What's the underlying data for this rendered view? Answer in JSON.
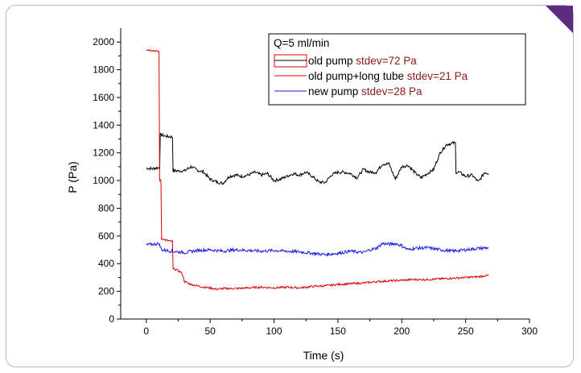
{
  "chart_data": {
    "type": "line",
    "xlabel": "Time (s)",
    "ylabel": "P (Pa)",
    "xlim": [
      -20,
      300
    ],
    "ylim": [
      0,
      2100
    ],
    "x_ticks": [
      0,
      50,
      100,
      150,
      200,
      250,
      300
    ],
    "y_ticks": [
      0,
      200,
      400,
      600,
      800,
      1000,
      1200,
      1400,
      1600,
      1800,
      2000
    ],
    "legend_title": "Q=5 ml/min",
    "legend_position": "top-right",
    "series": [
      {
        "name": "old pump",
        "stat": "stdev=72 Pa",
        "color": "#000000",
        "points": [
          [
            0,
            1090
          ],
          [
            5,
            1085
          ],
          [
            10,
            1095
          ],
          [
            12,
            1330
          ],
          [
            15,
            1320
          ],
          [
            20,
            1315
          ],
          [
            22,
            1070
          ],
          [
            30,
            1070
          ],
          [
            35,
            1100
          ],
          [
            40,
            1075
          ],
          [
            45,
            1060
          ],
          [
            50,
            1010
          ],
          [
            55,
            990
          ],
          [
            60,
            980
          ],
          [
            65,
            1030
          ],
          [
            70,
            1040
          ],
          [
            75,
            1030
          ],
          [
            80,
            1040
          ],
          [
            85,
            1060
          ],
          [
            90,
            1040
          ],
          [
            95,
            1050
          ],
          [
            100,
            1000
          ],
          [
            105,
            1010
          ],
          [
            110,
            1030
          ],
          [
            115,
            1050
          ],
          [
            120,
            1040
          ],
          [
            125,
            1060
          ],
          [
            130,
            1030
          ],
          [
            135,
            990
          ],
          [
            140,
            985
          ],
          [
            145,
            1040
          ],
          [
            150,
            1060
          ],
          [
            155,
            1060
          ],
          [
            160,
            1050
          ],
          [
            165,
            1020
          ],
          [
            170,
            1080
          ],
          [
            175,
            1060
          ],
          [
            180,
            1060
          ],
          [
            185,
            1120
          ],
          [
            190,
            1120
          ],
          [
            195,
            1010
          ],
          [
            200,
            1100
          ],
          [
            205,
            1110
          ],
          [
            210,
            1060
          ],
          [
            215,
            1020
          ],
          [
            220,
            1050
          ],
          [
            225,
            1080
          ],
          [
            230,
            1200
          ],
          [
            235,
            1260
          ],
          [
            240,
            1270
          ],
          [
            245,
            1060
          ],
          [
            250,
            1030
          ],
          [
            255,
            1040
          ],
          [
            260,
            990
          ],
          [
            265,
            1060
          ],
          [
            268,
            1050
          ]
        ]
      },
      {
        "name": "old pump+long tube",
        "stat": "stdev=21 Pa",
        "color": "#e00000",
        "points": [
          [
            0,
            1945
          ],
          [
            5,
            1940
          ],
          [
            10,
            1930
          ],
          [
            11,
            1000
          ],
          [
            13,
            580
          ],
          [
            15,
            570
          ],
          [
            20,
            560
          ],
          [
            22,
            360
          ],
          [
            25,
            350
          ],
          [
            28,
            330
          ],
          [
            30,
            270
          ],
          [
            35,
            250
          ],
          [
            40,
            240
          ],
          [
            45,
            230
          ],
          [
            50,
            225
          ],
          [
            55,
            215
          ],
          [
            60,
            220
          ],
          [
            70,
            220
          ],
          [
            80,
            225
          ],
          [
            90,
            230
          ],
          [
            100,
            225
          ],
          [
            110,
            230
          ],
          [
            120,
            225
          ],
          [
            130,
            235
          ],
          [
            140,
            240
          ],
          [
            150,
            250
          ],
          [
            160,
            255
          ],
          [
            170,
            260
          ],
          [
            180,
            270
          ],
          [
            190,
            275
          ],
          [
            200,
            280
          ],
          [
            210,
            285
          ],
          [
            220,
            285
          ],
          [
            230,
            290
          ],
          [
            240,
            295
          ],
          [
            250,
            300
          ],
          [
            260,
            305
          ],
          [
            268,
            315
          ]
        ]
      },
      {
        "name": "new pump",
        "stat": "stdev=28 Pa",
        "color": "#1a1ae6",
        "points": [
          [
            0,
            535
          ],
          [
            5,
            540
          ],
          [
            10,
            545
          ],
          [
            12,
            500
          ],
          [
            20,
            490
          ],
          [
            30,
            480
          ],
          [
            40,
            495
          ],
          [
            50,
            500
          ],
          [
            60,
            490
          ],
          [
            70,
            500
          ],
          [
            80,
            495
          ],
          [
            90,
            490
          ],
          [
            100,
            495
          ],
          [
            110,
            490
          ],
          [
            120,
            485
          ],
          [
            130,
            475
          ],
          [
            140,
            465
          ],
          [
            150,
            475
          ],
          [
            160,
            490
          ],
          [
            170,
            480
          ],
          [
            175,
            500
          ],
          [
            180,
            510
          ],
          [
            185,
            545
          ],
          [
            190,
            540
          ],
          [
            195,
            545
          ],
          [
            200,
            530
          ],
          [
            205,
            500
          ],
          [
            210,
            510
          ],
          [
            220,
            515
          ],
          [
            230,
            500
          ],
          [
            240,
            490
          ],
          [
            250,
            500
          ],
          [
            260,
            510
          ],
          [
            268,
            515
          ]
        ]
      }
    ]
  }
}
